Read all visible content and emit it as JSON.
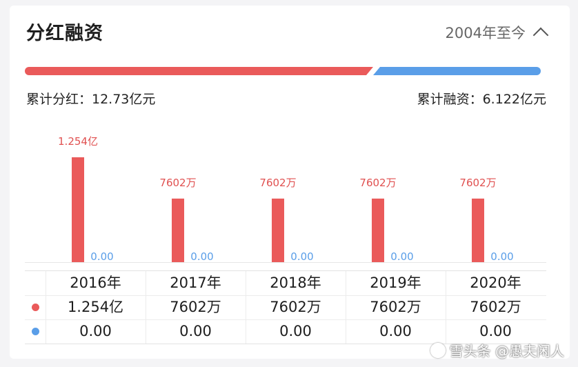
{
  "header": {
    "title": "分红融资",
    "period": "2004年至今",
    "period_icon": "chevron-up-icon"
  },
  "ratio": {
    "dividend_fraction": 0.675,
    "financing_fraction": 0.325,
    "dividend_color": "#ea5a5a",
    "financing_color": "#5a9ee8"
  },
  "totals": {
    "dividend_text": "累计分红：12.73亿元",
    "financing_text": "累计融资：6.122亿元"
  },
  "chart_data": {
    "type": "bar",
    "categories": [
      "2016年",
      "2017年",
      "2018年",
      "2019年",
      "2020年"
    ],
    "series": [
      {
        "values": [
          1.254,
          0.7602,
          0.7602,
          0.7602,
          0.7602
        ],
        "labels": [
          "1.254亿",
          "7602万",
          "7602万",
          "7602万",
          "7602万"
        ],
        "color": "#ea5a5a"
      },
      {
        "values": [
          0,
          0,
          0,
          0,
          0
        ],
        "labels": [
          "0.00",
          "0.00",
          "0.00",
          "0.00",
          "0.00"
        ],
        "color": "#5a9ee8"
      }
    ],
    "ylim": [
      0,
      1.254
    ],
    "grid": false,
    "legend": "none"
  },
  "table": {
    "years": [
      "2016年",
      "2017年",
      "2018年",
      "2019年",
      "2020年"
    ],
    "dividend_row": [
      "1.254亿",
      "7602万",
      "7602万",
      "7602万",
      "7602万"
    ],
    "financing_row": [
      "0.00",
      "0.00",
      "0.00",
      "0.00",
      "0.00"
    ]
  },
  "watermark": {
    "text": "雪头条 @愚夫闲人"
  }
}
